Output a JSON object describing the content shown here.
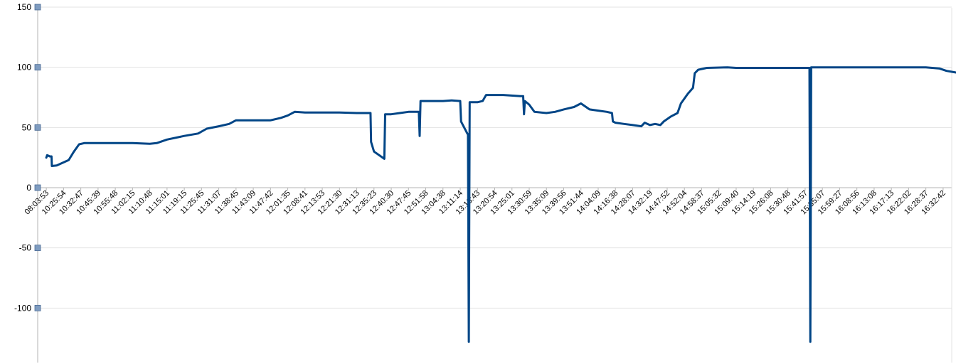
{
  "chart_data": {
    "type": "line",
    "title": "",
    "xlabel": "",
    "ylabel": "",
    "ylim": [
      -140,
      150
    ],
    "y_ticks": [
      -100,
      -50,
      0,
      50,
      100,
      150
    ],
    "grid": true,
    "legend": "none",
    "line_color": "#004586",
    "marker_color": "#7f9cc0",
    "x_tick_labels": [
      "08:03:53",
      "10:25:54",
      "10:32:47",
      "10:45:39",
      "10:55:48",
      "11:02:15",
      "11:10:48",
      "11:15:01",
      "11:19:15",
      "11:25:45",
      "11:31:07",
      "11:38:45",
      "11:43:09",
      "11:47:42",
      "12:01:35",
      "12:08:41",
      "12:13:53",
      "12:21:30",
      "12:31:13",
      "12:35:23",
      "12:40:30",
      "12:47:45",
      "12:51:58",
      "13:04:38",
      "13:11:14",
      "13:16:43",
      "13:20:54",
      "13:25:01",
      "13:30:59",
      "13:35:09",
      "13:39:56",
      "13:51:44",
      "14:04:09",
      "14:16:38",
      "14:28:07",
      "14:32:19",
      "14:47:52",
      "14:52:04",
      "14:58:37",
      "15:05:32",
      "15:09:40",
      "15:14:19",
      "15:26:08",
      "15:30:48",
      "15:41:57",
      "15:55:07",
      "15:59:27",
      "16:08:56",
      "16:13:08",
      "16:17:13",
      "16:22:02",
      "16:28:37",
      "16:32:42"
    ],
    "series": [
      {
        "values": [
          [
            0,
            25
          ],
          [
            0.05,
            27
          ],
          [
            0.2,
            26
          ],
          [
            0.3,
            26
          ],
          [
            0.32,
            18
          ],
          [
            0.6,
            18.5
          ],
          [
            1.0,
            21
          ],
          [
            1.3,
            23
          ],
          [
            1.6,
            30
          ],
          [
            1.9,
            36
          ],
          [
            2.2,
            37
          ],
          [
            3.0,
            37
          ],
          [
            4.0,
            37
          ],
          [
            5.0,
            37
          ],
          [
            6.0,
            36.5
          ],
          [
            6.4,
            37
          ],
          [
            7.0,
            40
          ],
          [
            8.0,
            43
          ],
          [
            8.8,
            45
          ],
          [
            9.3,
            49
          ],
          [
            10.0,
            51
          ],
          [
            10.6,
            53
          ],
          [
            11.0,
            56
          ],
          [
            12.0,
            56
          ],
          [
            13.0,
            56
          ],
          [
            13.6,
            58
          ],
          [
            14.0,
            60
          ],
          [
            14.4,
            63
          ],
          [
            15.0,
            62.5
          ],
          [
            16.0,
            62.5
          ],
          [
            17.0,
            62.5
          ],
          [
            18.0,
            62
          ],
          [
            18.8,
            62
          ],
          [
            18.83,
            38
          ],
          [
            19.0,
            30
          ],
          [
            19.4,
            26
          ],
          [
            19.6,
            24
          ],
          [
            19.65,
            61
          ],
          [
            20.0,
            61
          ],
          [
            20.5,
            62
          ],
          [
            21.0,
            63
          ],
          [
            21.6,
            63
          ],
          [
            21.65,
            43
          ],
          [
            21.7,
            72
          ],
          [
            22.5,
            72
          ],
          [
            23.0,
            72
          ],
          [
            23.5,
            72.5
          ],
          [
            24.0,
            72
          ],
          [
            24.05,
            55
          ],
          [
            24.3,
            48
          ],
          [
            24.45,
            44
          ],
          [
            24.5,
            -128
          ],
          [
            24.55,
            71
          ],
          [
            25.0,
            71
          ],
          [
            25.3,
            72
          ],
          [
            25.5,
            77
          ],
          [
            26.5,
            77
          ],
          [
            27.5,
            76
          ],
          [
            27.65,
            76
          ],
          [
            27.7,
            61
          ],
          [
            27.75,
            72
          ],
          [
            28.0,
            69
          ],
          [
            28.3,
            63
          ],
          [
            29.0,
            62
          ],
          [
            29.5,
            63
          ],
          [
            30.0,
            65
          ],
          [
            30.6,
            67
          ],
          [
            31.0,
            70
          ],
          [
            31.5,
            65
          ],
          [
            32.0,
            64
          ],
          [
            32.5,
            63
          ],
          [
            32.8,
            62
          ],
          [
            32.85,
            55
          ],
          [
            33.0,
            54
          ],
          [
            33.5,
            53
          ],
          [
            34.0,
            52
          ],
          [
            34.5,
            51
          ],
          [
            34.7,
            54
          ],
          [
            35.0,
            52
          ],
          [
            35.3,
            53
          ],
          [
            35.6,
            52
          ],
          [
            35.8,
            55
          ],
          [
            36.2,
            59
          ],
          [
            36.6,
            62
          ],
          [
            36.8,
            70
          ],
          [
            37.2,
            78
          ],
          [
            37.5,
            83
          ],
          [
            37.6,
            95
          ],
          [
            37.8,
            98
          ],
          [
            38.3,
            99.5
          ],
          [
            39.5,
            100
          ],
          [
            40.0,
            99.5
          ],
          [
            41.0,
            99.5
          ],
          [
            42.0,
            99.5
          ],
          [
            43.0,
            99.5
          ],
          [
            44.0,
            99.5
          ],
          [
            44.25,
            99.5
          ],
          [
            44.3,
            -128
          ],
          [
            44.35,
            100
          ],
          [
            45.0,
            100
          ],
          [
            46.0,
            100
          ],
          [
            47.0,
            100
          ],
          [
            48.0,
            100
          ],
          [
            49.0,
            100
          ],
          [
            50.0,
            100
          ],
          [
            51.0,
            100
          ],
          [
            51.8,
            99
          ],
          [
            52.2,
            97
          ],
          [
            52.6,
            96
          ],
          [
            53.0,
            95
          ],
          [
            53.5,
            94
          ],
          [
            54.0,
            93
          ],
          [
            54.5,
            92
          ],
          [
            55.0,
            91
          ]
        ]
      }
    ]
  }
}
